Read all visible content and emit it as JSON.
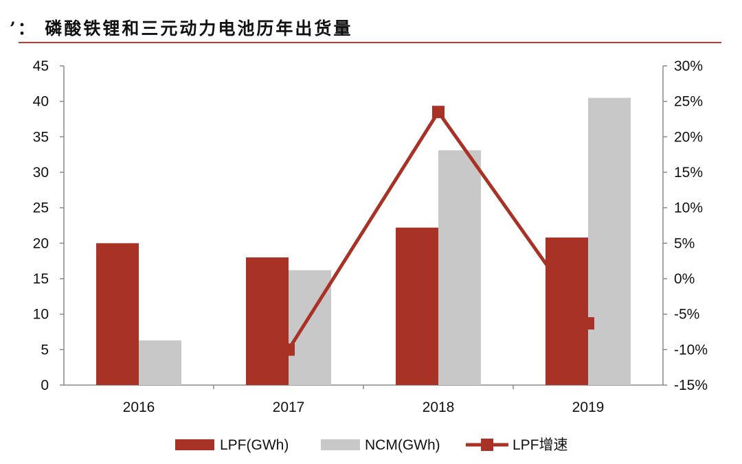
{
  "title": "’： 磷酸铁锂和三元动力电池历年出货量",
  "colors": {
    "lpf": "#A93226",
    "ncm": "#C8C8C8",
    "rule": "#C0392B",
    "axis": "#888888"
  },
  "chart_data": {
    "type": "bar",
    "categories": [
      "2016",
      "2017",
      "2018",
      "2019"
    ],
    "series": [
      {
        "name": "LPF(GWh)",
        "kind": "bar",
        "axis": "left",
        "values": [
          20.0,
          18.0,
          22.2,
          20.8
        ]
      },
      {
        "name": "NCM(GWh)",
        "kind": "bar",
        "axis": "left",
        "values": [
          6.3,
          16.2,
          33.1,
          40.5
        ]
      },
      {
        "name": "LPF增速",
        "kind": "line",
        "axis": "right",
        "values": [
          null,
          -10.0,
          23.5,
          -6.3
        ]
      }
    ],
    "y_left": {
      "min": 0,
      "max": 45,
      "ticks": [
        "0",
        "5",
        "10",
        "15",
        "20",
        "25",
        "30",
        "35",
        "40",
        "45"
      ]
    },
    "y_right": {
      "min": -15,
      "max": 30,
      "ticks": [
        "-15%",
        "-10%",
        "-5%",
        "0%",
        "5%",
        "10%",
        "15%",
        "20%",
        "25%",
        "30%"
      ]
    },
    "legend_position": "bottom",
    "grid": false
  },
  "legend": [
    "LPF(GWh)",
    "NCM(GWh)",
    "LPF增速"
  ]
}
